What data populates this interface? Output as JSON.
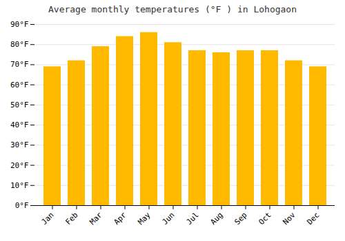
{
  "chart_data": {
    "type": "bar",
    "title": "Average monthly temperatures (°F ) in Lohogaon",
    "categories": [
      "Jan",
      "Feb",
      "Mar",
      "Apr",
      "May",
      "Jun",
      "Jul",
      "Aug",
      "Sep",
      "Oct",
      "Nov",
      "Dec"
    ],
    "values": [
      69,
      72,
      79,
      84,
      86,
      81,
      77,
      76,
      77,
      77,
      72,
      69
    ],
    "color": "#FFBA00",
    "ylim": [
      0,
      90
    ],
    "yticks": [
      {
        "value": 0,
        "label": "0°F"
      },
      {
        "value": 10,
        "label": "10°F"
      },
      {
        "value": 20,
        "label": "20°F"
      },
      {
        "value": 30,
        "label": "30°F"
      },
      {
        "value": 40,
        "label": "40°F"
      },
      {
        "value": 50,
        "label": "50°F"
      },
      {
        "value": 60,
        "label": "60°F"
      },
      {
        "value": 70,
        "label": "70°F"
      },
      {
        "value": 80,
        "label": "80°F"
      },
      {
        "value": 90,
        "label": "90°F"
      }
    ],
    "grid": true
  }
}
